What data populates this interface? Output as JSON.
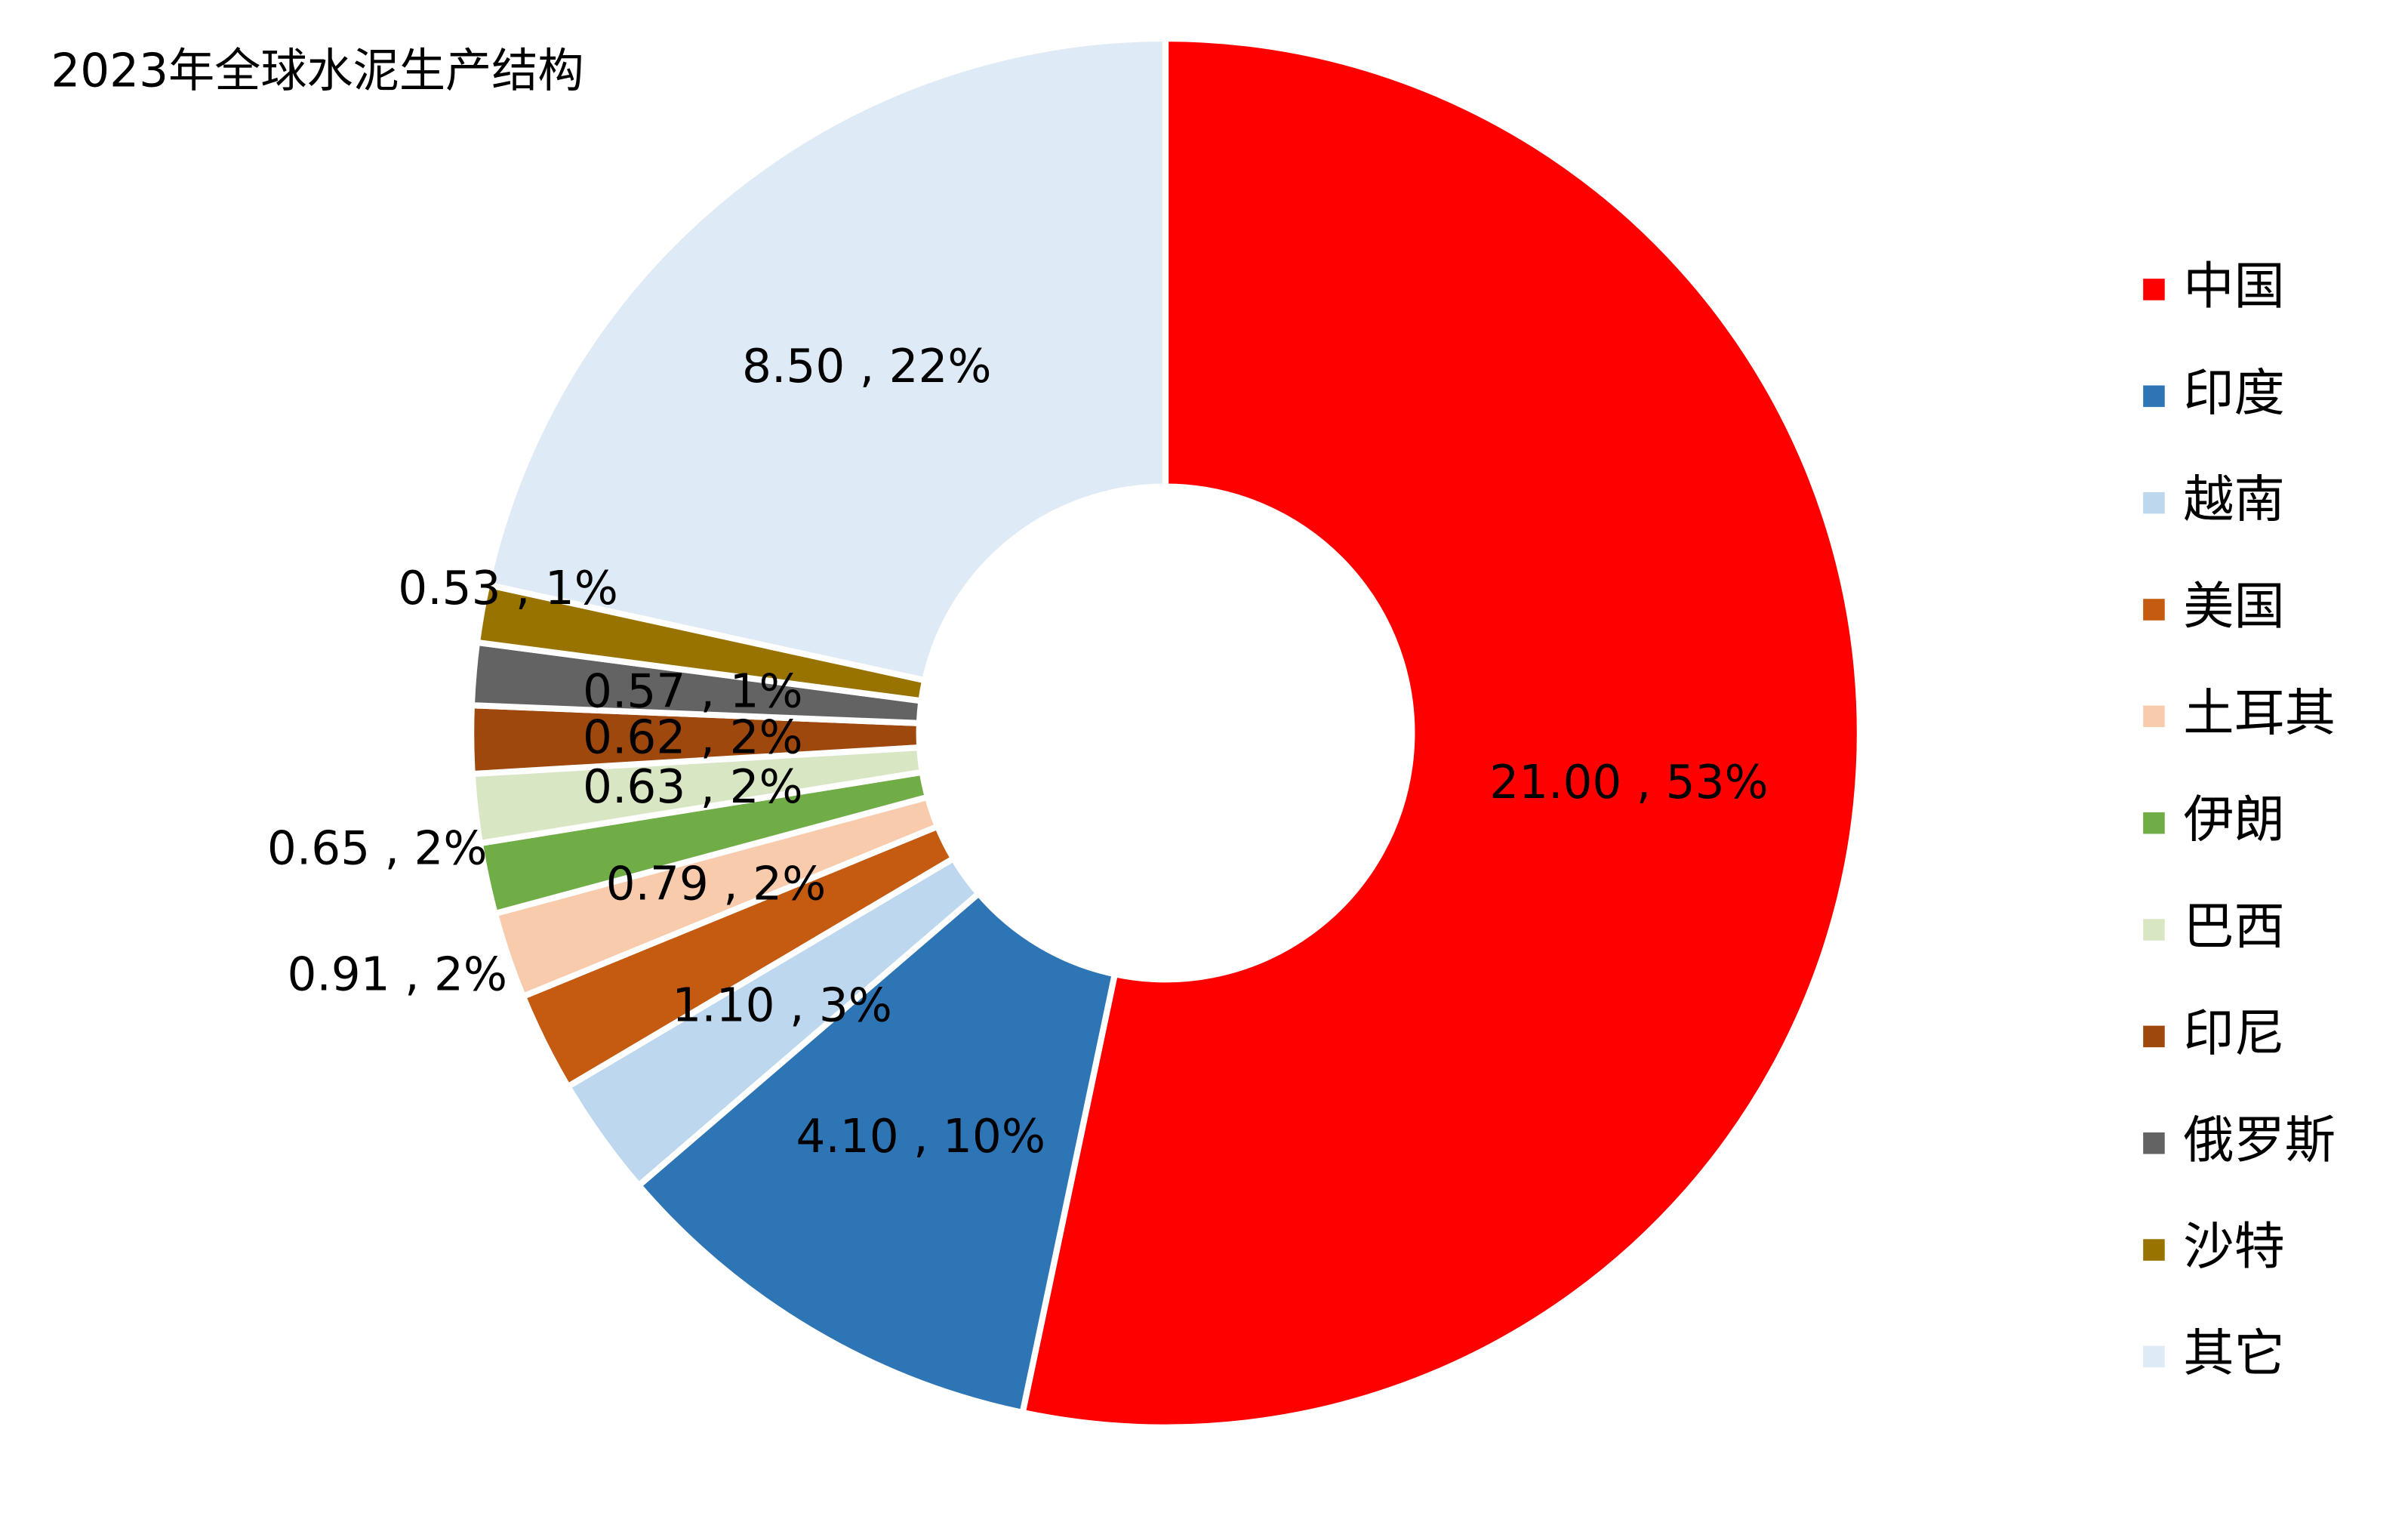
{
  "chart_data": {
    "type": "donut",
    "title": "2023年全球水泥生产结构",
    "categories": [
      "中国",
      "印度",
      "越南",
      "美国",
      "土耳其",
      "伊朗",
      "巴西",
      "印尼",
      "俄罗斯",
      "沙特",
      "其它"
    ],
    "values": [
      21.0,
      4.1,
      1.1,
      0.91,
      0.79,
      0.65,
      0.63,
      0.62,
      0.57,
      0.53,
      8.5
    ],
    "value_labels": [
      "21.00 , 53%",
      "4.10 , 10%",
      "1.10 , 3%",
      "0.91 , 2%",
      "0.79 , 2%",
      "0.65 , 2%",
      "0.63 , 2%",
      "0.62 , 2%",
      "0.57 , 1%",
      "0.53 , 1%",
      "8.50 , 22%"
    ],
    "colors": [
      "#ff0000",
      "#2e75b6",
      "#bdd7ee",
      "#c55a11",
      "#f8cbad",
      "#70ad47",
      "#d9e6c4",
      "#9e480e",
      "#636363",
      "#997300",
      "#deeaf6"
    ],
    "legend": "right"
  }
}
